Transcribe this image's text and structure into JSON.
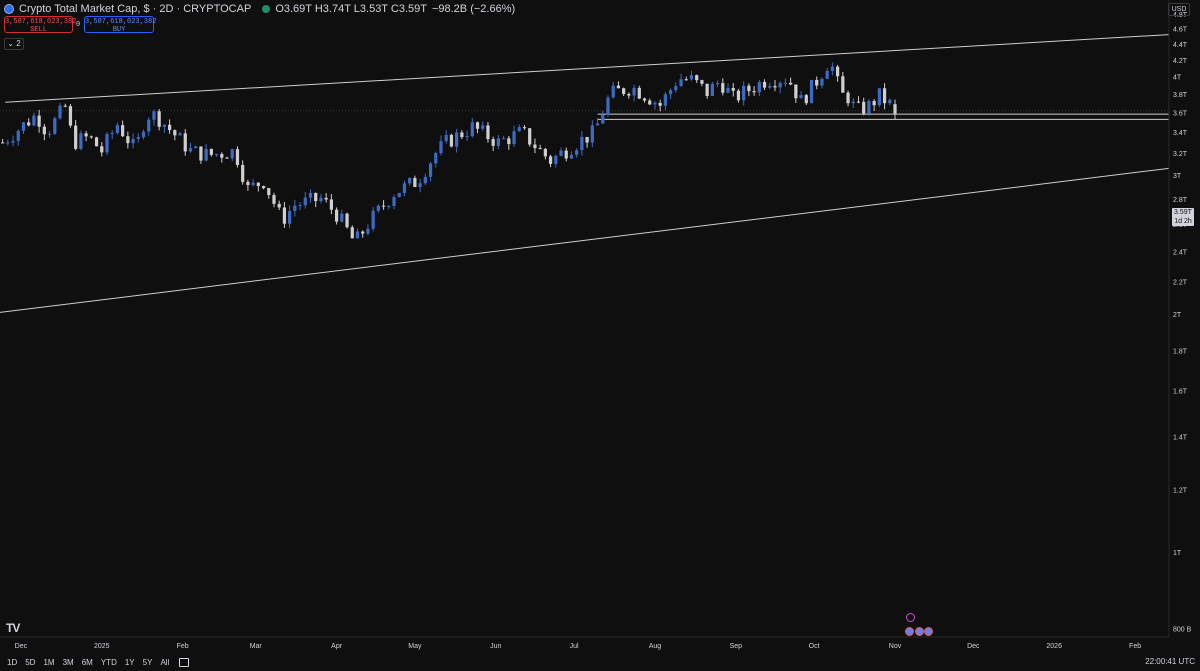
{
  "header": {
    "symbol_title": "Crypto Total Market Cap, $ · 2D · CRYPTOCAP",
    "ohlc": "O3.69T H3.74T L3.53T C3.59T",
    "change": "−98.2B (−2.66%)"
  },
  "trade": {
    "sell_price": "3,587,618,023,382",
    "sell_label": "SELL",
    "spread": "0",
    "buy_price": "3,587,618,023,382",
    "buy_label": "BUY"
  },
  "indicators_toggle": "2",
  "currency": "USD",
  "price_tag": {
    "price": "3.59T",
    "countdown": "1d 2h"
  },
  "bottom_bar": {
    "ranges": [
      "1D",
      "5D",
      "1M",
      "3M",
      "6M",
      "YTD",
      "1Y",
      "5Y",
      "All"
    ],
    "clock": "22:00:41 UTC"
  },
  "colors": {
    "background": "#0f0f0f",
    "up_candle": "#3d6bc4",
    "down_candle": "#cfcfcf",
    "trendline": "#cfcfcf",
    "axis_text": "#d1d4dc"
  },
  "chart_data": {
    "type": "candlestick",
    "interval": "2D",
    "y_axis": {
      "scale": "log",
      "range": [
        0.78,
        5.0
      ],
      "unit": "T",
      "ticks": [
        "800 B",
        "1T",
        "1.2T",
        "1.4T",
        "1.6T",
        "1.8T",
        "2T",
        "2.2T",
        "2.4T",
        "2.6T",
        "2.8T",
        "3T",
        "3.2T",
        "3.4T",
        "3.6T",
        "3.8T",
        "4T",
        "4.2T",
        "4.4T",
        "4.6T",
        "4.8T"
      ],
      "tick_values": [
        0.8,
        1.0,
        1.2,
        1.4,
        1.6,
        1.8,
        2.0,
        2.2,
        2.4,
        2.6,
        2.8,
        3.0,
        3.2,
        3.4,
        3.6,
        3.8,
        4.0,
        4.2,
        4.4,
        4.6,
        4.8
      ]
    },
    "x_axis": {
      "labels": [
        "Dec",
        "2025",
        "Feb",
        "Mar",
        "Apr",
        "May",
        "Jun",
        "Jul",
        "Aug",
        "Sep",
        "Oct",
        "Nov",
        "Dec",
        "2026",
        "Feb"
      ],
      "label_dates": [
        "2024-12-01",
        "2025-01-01",
        "2025-02-01",
        "2025-03-01",
        "2025-04-01",
        "2025-05-01",
        "2025-06-01",
        "2025-07-01",
        "2025-08-01",
        "2025-09-01",
        "2025-10-01",
        "2025-11-01",
        "2025-12-01",
        "2026-01-01",
        "2026-02-01"
      ],
      "range": [
        "2024-11-23",
        "2026-02-14"
      ]
    },
    "candle_start": "2024-11-23",
    "anchors": [
      [
        "2024-11-23",
        3.3
      ],
      [
        "2024-11-30",
        3.45
      ],
      [
        "2024-12-06",
        3.58
      ],
      [
        "2024-12-10",
        3.4
      ],
      [
        "2024-12-17",
        3.66
      ],
      [
        "2024-12-20",
        3.3
      ],
      [
        "2024-12-26",
        3.35
      ],
      [
        "2024-12-31",
        3.22
      ],
      [
        "2025-01-06",
        3.48
      ],
      [
        "2025-01-13",
        3.22
      ],
      [
        "2025-01-17",
        3.58
      ],
      [
        "2025-01-21",
        3.57
      ],
      [
        "2025-01-27",
        3.4
      ],
      [
        "2025-02-03",
        3.22
      ],
      [
        "2025-02-10",
        3.18
      ],
      [
        "2025-02-20",
        3.22
      ],
      [
        "2025-02-25",
        2.88
      ],
      [
        "2025-03-03",
        2.95
      ],
      [
        "2025-03-10",
        2.63
      ],
      [
        "2025-03-15",
        2.75
      ],
      [
        "2025-03-25",
        2.8
      ],
      [
        "2025-03-31",
        2.68
      ],
      [
        "2025-04-07",
        2.46
      ],
      [
        "2025-04-12",
        2.6
      ],
      [
        "2025-04-22",
        2.85
      ],
      [
        "2025-05-01",
        2.95
      ],
      [
        "2025-05-08",
        3.2
      ],
      [
        "2025-05-12",
        3.3
      ],
      [
        "2025-05-22",
        3.45
      ],
      [
        "2025-06-01",
        3.3
      ],
      [
        "2025-06-10",
        3.4
      ],
      [
        "2025-06-17",
        3.22
      ],
      [
        "2025-06-21",
        3.13
      ],
      [
        "2025-06-30",
        3.28
      ],
      [
        "2025-07-08",
        3.4
      ],
      [
        "2025-07-10",
        3.55
      ],
      [
        "2025-07-14",
        3.8
      ],
      [
        "2025-07-22",
        3.88
      ],
      [
        "2025-07-28",
        3.78
      ],
      [
        "2025-08-02",
        3.68
      ],
      [
        "2025-08-09",
        3.98
      ],
      [
        "2025-08-14",
        3.96
      ],
      [
        "2025-08-20",
        3.82
      ],
      [
        "2025-08-25",
        3.95
      ],
      [
        "2025-08-30",
        3.75
      ],
      [
        "2025-09-05",
        3.85
      ],
      [
        "2025-09-12",
        3.97
      ],
      [
        "2025-09-20",
        3.98
      ],
      [
        "2025-09-25",
        3.72
      ],
      [
        "2025-09-30",
        3.9
      ],
      [
        "2025-10-05",
        4.15
      ],
      [
        "2025-10-08",
        4.08
      ],
      [
        "2025-10-10",
        3.75
      ],
      [
        "2025-10-12",
        3.82
      ],
      [
        "2025-10-16",
        3.62
      ],
      [
        "2025-10-21",
        3.67
      ],
      [
        "2025-10-25",
        3.78
      ],
      [
        "2025-10-29",
        3.69
      ],
      [
        "2025-10-31",
        3.59
      ]
    ],
    "last_candle": {
      "open": 3.69,
      "high": 3.74,
      "low": 3.53,
      "close": 3.59
    },
    "trendlines": [
      {
        "name": "upper-channel",
        "points": [
          [
            "2024-11-25",
            3.71
          ],
          [
            "2026-02-14",
            4.52
          ]
        ]
      },
      {
        "name": "lower-channel",
        "points": [
          [
            "2024-11-12",
            1.99
          ],
          [
            "2026-02-14",
            3.06
          ]
        ]
      }
    ],
    "horizontal_lines": [
      {
        "name": "support-top",
        "value": 3.585,
        "from": "2025-07-10"
      },
      {
        "name": "support-bottom",
        "value": 3.53,
        "from": "2025-07-10"
      }
    ],
    "crosshair_price": 3.62,
    "last_price": 3.59
  }
}
